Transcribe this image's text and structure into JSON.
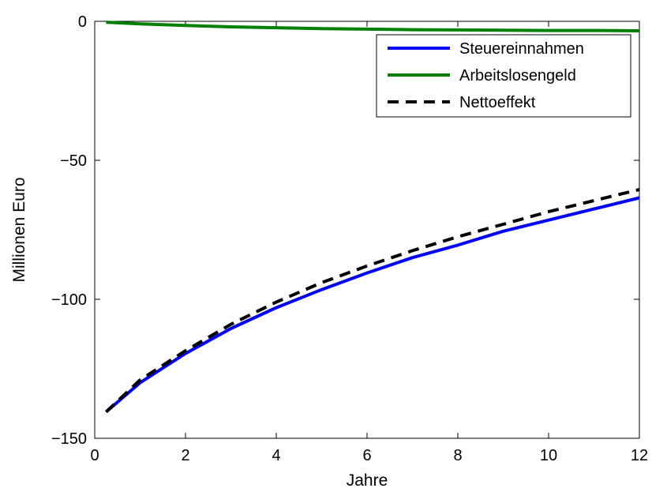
{
  "chart_data": {
    "type": "line",
    "title": "",
    "xlabel": "Jahre",
    "ylabel": "Millionen Euro",
    "xlim": [
      0,
      12
    ],
    "ylim": [
      -150,
      0
    ],
    "xticks": [
      0,
      2,
      4,
      6,
      8,
      10,
      12
    ],
    "yticks": [
      0,
      -50,
      -100,
      -150
    ],
    "xtick_labels": [
      "0",
      "2",
      "4",
      "6",
      "8",
      "10",
      "12"
    ],
    "ytick_labels": [
      "0",
      "−50",
      "−100",
      "−150"
    ],
    "grid": false,
    "legend_position": "top-right",
    "series": [
      {
        "name": "Steuereinnahmen",
        "color": "#0000ff",
        "dash": "solid",
        "x": [
          0.25,
          1,
          2,
          3,
          4,
          5,
          6,
          7,
          8,
          9,
          10,
          11,
          12
        ],
        "y": [
          -140.5,
          -130,
          -119.5,
          -110.5,
          -103,
          -96.5,
          -90.5,
          -85,
          -80.5,
          -75.5,
          -71.5,
          -67.5,
          -63.5
        ]
      },
      {
        "name": "Arbeitslosengeld",
        "color": "#008000",
        "dash": "solid",
        "x": [
          0.25,
          1,
          2,
          3,
          4,
          5,
          6,
          7,
          8,
          9,
          10,
          11,
          12
        ],
        "y": [
          -0.3,
          -0.9,
          -1.5,
          -2.0,
          -2.3,
          -2.6,
          -2.8,
          -3.0,
          -3.1,
          -3.2,
          -3.3,
          -3.3,
          -3.4
        ]
      },
      {
        "name": "Nettoeffekt",
        "color": "#000000",
        "dash": "dashed",
        "x": [
          0.25,
          1,
          2,
          3,
          4,
          5,
          6,
          7,
          8,
          9,
          10,
          11,
          12
        ],
        "y": [
          -140.5,
          -129,
          -118.5,
          -109,
          -101,
          -94,
          -88,
          -82.5,
          -77.5,
          -73,
          -68.5,
          -64.5,
          -60.5
        ]
      }
    ]
  }
}
